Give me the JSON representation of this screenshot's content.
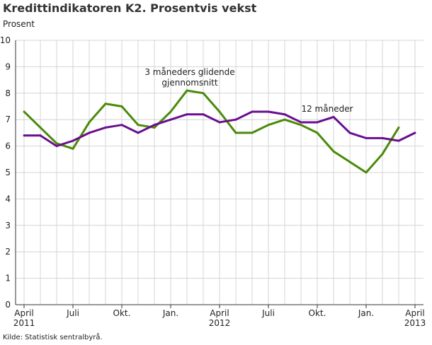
{
  "chart_data": {
    "type": "line",
    "title": "Kredittindikatoren K2. Prosentvis vekst",
    "ylabel": "Prosent",
    "xlabel": "",
    "ylim": [
      0,
      10
    ],
    "yticks": [
      "0",
      "1",
      "2",
      "3",
      "4",
      "5",
      "6",
      "7",
      "8",
      "9",
      "10"
    ],
    "grid": true,
    "x": [
      "2011-04",
      "2011-05",
      "2011-06",
      "2011-07",
      "2011-08",
      "2011-09",
      "2011-10",
      "2011-11",
      "2011-12",
      "2012-01",
      "2012-02",
      "2012-03",
      "2012-04",
      "2012-05",
      "2012-06",
      "2012-07",
      "2012-08",
      "2012-09",
      "2012-10",
      "2012-11",
      "2012-12",
      "2013-01",
      "2013-02",
      "2013-03",
      "2013-04"
    ],
    "xticks": [
      {
        "index": 0,
        "label": "April",
        "sub": "2011"
      },
      {
        "index": 3,
        "label": "Juli",
        "sub": ""
      },
      {
        "index": 6,
        "label": "Okt.",
        "sub": ""
      },
      {
        "index": 9,
        "label": "Jan.",
        "sub": ""
      },
      {
        "index": 12,
        "label": "April",
        "sub": "2012"
      },
      {
        "index": 15,
        "label": "Juli",
        "sub": ""
      },
      {
        "index": 18,
        "label": "Okt.",
        "sub": ""
      },
      {
        "index": 21,
        "label": "Jan.",
        "sub": ""
      },
      {
        "index": 24,
        "label": "April",
        "sub": "2013"
      }
    ],
    "series": [
      {
        "name": "3 måneders glidende gjennomsnitt",
        "label_lines": [
          "3 måneders glidende",
          "gjennomsnitt"
        ],
        "color": "#4a8a0a",
        "values": [
          7.3,
          6.7,
          6.1,
          5.9,
          6.9,
          7.6,
          7.5,
          6.8,
          6.7,
          7.3,
          8.1,
          8.0,
          7.3,
          6.5,
          6.5,
          6.8,
          7.0,
          6.8,
          6.5,
          5.8,
          5.4,
          5.0,
          5.7,
          6.7,
          null
        ]
      },
      {
        "name": "12 måneder",
        "label_lines": [
          "12 måneder"
        ],
        "color": "#6a0f8e",
        "values": [
          6.4,
          6.4,
          6.0,
          6.2,
          6.5,
          6.7,
          6.8,
          6.5,
          6.8,
          7.0,
          7.2,
          7.2,
          6.9,
          7.0,
          7.3,
          7.3,
          7.2,
          6.9,
          6.9,
          7.1,
          6.5,
          6.3,
          6.3,
          6.2,
          6.5
        ]
      }
    ]
  },
  "source": "Kilde: Statistisk sentralbyrå."
}
